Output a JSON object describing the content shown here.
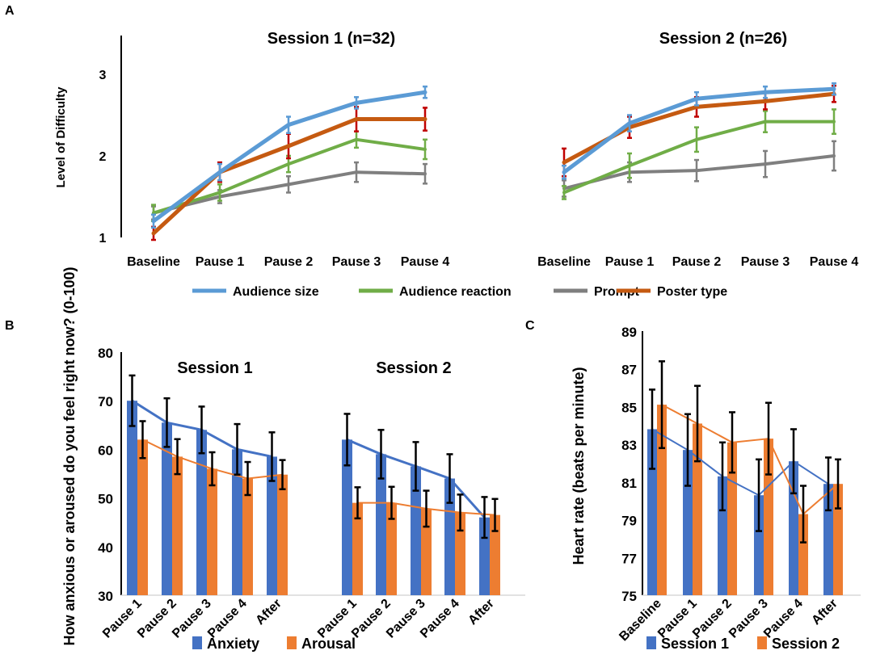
{
  "colors": {
    "audience_size": "#5b9bd5",
    "audience_reaction": "#70ad47",
    "prompt": "#7f7f7f",
    "poster_type": "#c55a11",
    "poster_err": "#c00000",
    "anxiety": "#4472c4",
    "arousal": "#ed7d31",
    "session1": "#4472c4",
    "session2": "#ed7d31"
  },
  "chart_data": [
    {
      "panel": "A",
      "type": "line",
      "ylabel": "Level of Difficulty",
      "ylim": [
        1,
        3.5
      ],
      "yticks": [
        1,
        2,
        3
      ],
      "categories": [
        "Baseline",
        "Pause 1",
        "Pause 2",
        "Pause 3",
        "Pause 4"
      ],
      "sessions": [
        {
          "title": "Session 1 (n=32)",
          "series": [
            {
              "name": "Audience size",
              "values": [
                1.2,
                1.8,
                2.38,
                2.65,
                2.78
              ],
              "errors": [
                0.08,
                0.1,
                0.1,
                0.07,
                0.07
              ]
            },
            {
              "name": "Audience reaction",
              "values": [
                1.3,
                1.55,
                1.9,
                2.2,
                2.08
              ],
              "errors": [
                0.1,
                0.1,
                0.1,
                0.1,
                0.12
              ]
            },
            {
              "name": "Prompt",
              "values": [
                1.3,
                1.5,
                1.65,
                1.8,
                1.78
              ],
              "errors": [
                0.08,
                0.08,
                0.1,
                0.12,
                0.12
              ]
            },
            {
              "name": "Poster type",
              "values": [
                1.05,
                1.8,
                2.12,
                2.45,
                2.45
              ],
              "errors": [
                0.08,
                0.12,
                0.15,
                0.15,
                0.14
              ]
            }
          ]
        },
        {
          "title": "Session 2 (n=26)",
          "series": [
            {
              "name": "Audience size",
              "values": [
                1.8,
                2.4,
                2.7,
                2.78,
                2.82
              ],
              "errors": [
                0.08,
                0.1,
                0.08,
                0.07,
                0.07
              ]
            },
            {
              "name": "Audience reaction",
              "values": [
                1.55,
                1.88,
                2.2,
                2.42,
                2.42
              ],
              "errors": [
                0.08,
                0.15,
                0.15,
                0.13,
                0.15
              ]
            },
            {
              "name": "Prompt",
              "values": [
                1.6,
                1.8,
                1.82,
                1.9,
                2.0
              ],
              "errors": [
                0.1,
                0.12,
                0.13,
                0.16,
                0.18
              ]
            },
            {
              "name": "Poster type",
              "values": [
                1.92,
                2.35,
                2.6,
                2.67,
                2.76
              ],
              "errors": [
                0.17,
                0.13,
                0.12,
                0.1,
                0.1
              ]
            }
          ]
        }
      ],
      "legend": [
        "Audience size",
        "Audience reaction",
        "Prompt",
        "Poster type"
      ],
      "legend_position": "bottom"
    },
    {
      "panel": "B",
      "type": "bar",
      "ylabel": "How anxious or aroused do you feel right now? (0-100)",
      "ylim": [
        30,
        80
      ],
      "yticks": [
        30,
        40,
        50,
        60,
        70,
        80
      ],
      "categories": [
        "Pause 1",
        "Pause 2",
        "Pause 3",
        "Pause 4",
        "After"
      ],
      "sessions": [
        {
          "title": "Session 1",
          "series": [
            {
              "name": "Anxiety",
              "values": [
                70,
                65.5,
                64,
                60,
                58.5
              ],
              "errors": [
                5.2,
                5,
                4.8,
                5.2,
                5
              ]
            },
            {
              "name": "Arousal",
              "values": [
                62,
                58.5,
                56,
                54,
                54.8
              ],
              "errors": [
                3.8,
                3.6,
                3.4,
                3.4,
                3
              ]
            }
          ]
        },
        {
          "title": "Session 2",
          "series": [
            {
              "name": "Anxiety",
              "values": [
                62,
                59,
                56.5,
                54,
                46
              ],
              "errors": [
                5.3,
                5,
                5,
                5,
                4.2
              ]
            },
            {
              "name": "Arousal",
              "values": [
                49,
                49,
                47.8,
                47,
                46.5
              ],
              "errors": [
                3.2,
                3.3,
                3.7,
                3.7,
                3.3
              ]
            }
          ]
        }
      ],
      "legend": [
        "Anxiety",
        "Arousal"
      ],
      "legend_position": "bottom"
    },
    {
      "panel": "C",
      "type": "bar",
      "ylabel": "Heart rate (beats per minute)",
      "ylim": [
        75,
        89
      ],
      "yticks": [
        75,
        77,
        79,
        81,
        83,
        85,
        87,
        89
      ],
      "categories": [
        "Baseline",
        "Pause 1",
        "Pause 2",
        "Pause 3",
        "Pause 4",
        "After"
      ],
      "series": [
        {
          "name": "Session 1",
          "values": [
            83.8,
            82.7,
            81.3,
            80.3,
            82.1,
            80.9
          ],
          "errors": [
            2.1,
            1.9,
            1.8,
            1.9,
            1.7,
            1.4
          ]
        },
        {
          "name": "Session 2",
          "values": [
            85.1,
            84.1,
            83.1,
            83.3,
            79.3,
            80.9
          ],
          "errors": [
            2.3,
            2.0,
            1.6,
            1.9,
            1.5,
            1.3
          ]
        }
      ],
      "legend": [
        "Session 1",
        "Session 2"
      ],
      "legend_position": "bottom"
    }
  ]
}
